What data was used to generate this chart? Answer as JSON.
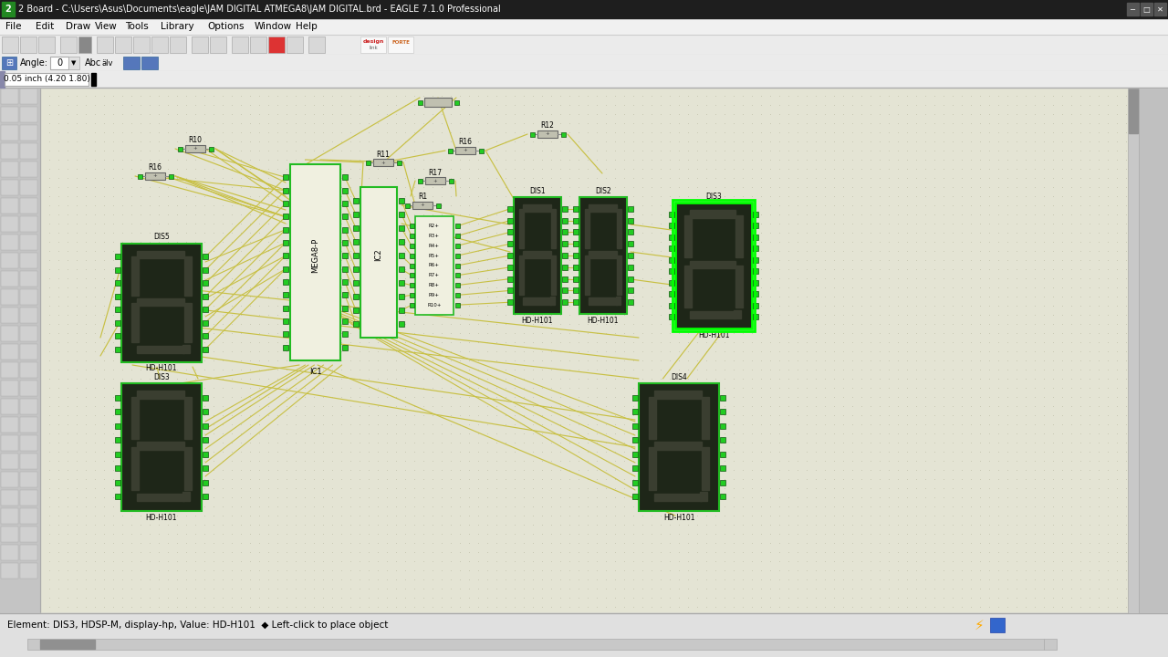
{
  "title_bar": "2 Board - C:\\Users\\Asus\\Documents\\eagle\\JAM DIGITAL ATMEGA8\\JAM DIGITAL.brd - EAGLE 7.1.0 Professional",
  "status_bar": "Element: DIS3, HDSP-M, display-hp, Value: HD-H101  ◆ Left-click to place object",
  "menu_items": [
    "File",
    "Edit",
    "Draw",
    "View",
    "Tools",
    "Library",
    "Options",
    "Window",
    "Help"
  ],
  "coord_display": "0.05 inch (4.20 1.80)",
  "angle_display": "Angle: 0",
  "canvas_bg": "#e8e8d8",
  "wire_color": "#c8c044",
  "component_green": "#22bb22",
  "pad_green": "#22cc22",
  "display_bg": "#1e2618",
  "seg_color": "#3a3e30",
  "ic_bg": "#f0f0e0",
  "ic_border": "#228822",
  "highlight_green": "#00ff00",
  "resistor_bg": "#aaaaaa",
  "titlebar_bg": "#1e1e1e",
  "toolbar_bg": "#ebebeb",
  "left_panel_bg": "#c4c4c4",
  "statusbar_bg": "#e0e0e0",
  "scrollbar_bg": "#c8c8c8",
  "scrollbar_thumb": "#909090"
}
